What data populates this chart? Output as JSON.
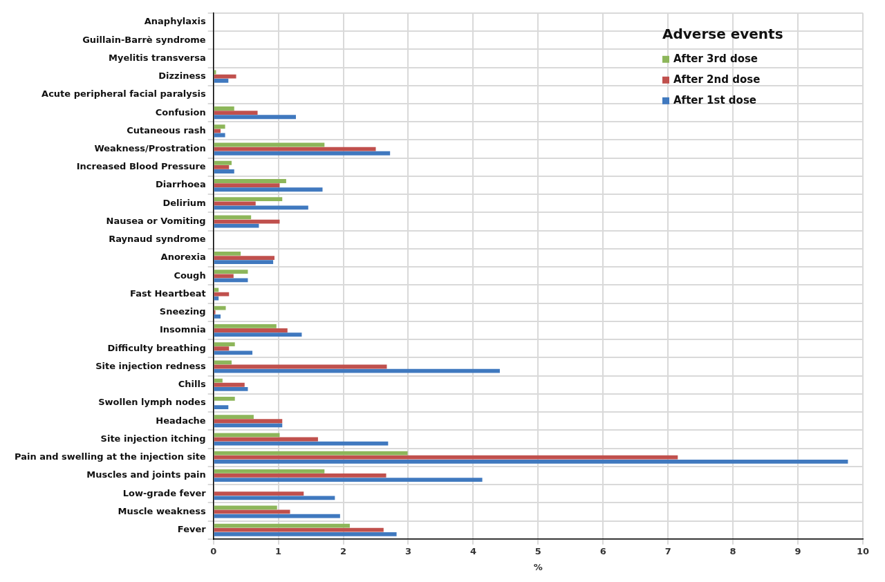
{
  "chart_data": {
    "type": "bar",
    "orientation": "horizontal",
    "xlabel": "%",
    "legend_title": "Adverse events",
    "legend": "top right",
    "grid": true,
    "categories": [
      "Anaphylaxis",
      "Guillain-Barrè syndrome",
      "Myelitis transversa",
      "Dizziness",
      "Acute peripheral facial paralysis",
      "Confusion",
      "Cutaneous rash",
      "Weakness/Prostration",
      "Increased Blood Pressure",
      "Diarrhoea",
      "Delirium",
      "Nausea or Vomiting",
      "Raynaud syndrome",
      "Anorexia",
      "Cough",
      "Fast Heartbeat",
      "Sneezing",
      "Insomnia",
      "Difficulty breathing",
      "Site injection redness",
      "Chills",
      "Swollen lymph nodes",
      "Headache",
      "Site injection itching",
      "Pain and swelling at the injection site",
      "Muscles and joints pain",
      "Low-grade fever",
      "Muscle weakness",
      "Fever"
    ],
    "xlim": [
      0,
      10
    ],
    "xticks": [
      0,
      1,
      2,
      3,
      4,
      5,
      6,
      7,
      8,
      9,
      10
    ],
    "series": [
      {
        "name": "After 3rd dose",
        "color": "#8db65a",
        "values": [
          0,
          0,
          0,
          0.04,
          0,
          0.32,
          0.18,
          1.71,
          0.28,
          1.12,
          1.06,
          0.58,
          0,
          0.42,
          0.53,
          0.08,
          0.19,
          0.97,
          0.33,
          0.28,
          0.14,
          0.33,
          0.62,
          1.02,
          2.99,
          1.71,
          0,
          0.98,
          2.1
        ]
      },
      {
        "name": "After 2nd dose",
        "color": "#c0504d",
        "values": [
          0,
          0,
          0,
          0.35,
          0,
          0.68,
          0.11,
          2.5,
          0.24,
          1.02,
          0.65,
          1.02,
          0,
          0.94,
          0.31,
          0.24,
          0.03,
          1.14,
          0.24,
          2.67,
          0.48,
          0,
          1.06,
          1.61,
          7.15,
          2.66,
          1.39,
          1.18,
          2.62
        ]
      },
      {
        "name": "After 1st dose",
        "color": "#4079bf",
        "values": [
          0,
          0,
          0,
          0.23,
          0,
          1.27,
          0.18,
          2.72,
          0.32,
          1.68,
          1.46,
          0.7,
          0,
          0.92,
          0.53,
          0.08,
          0.11,
          1.36,
          0.6,
          4.41,
          0.53,
          0.23,
          1.06,
          2.69,
          9.77,
          4.14,
          1.87,
          1.95,
          2.82
        ]
      }
    ]
  }
}
